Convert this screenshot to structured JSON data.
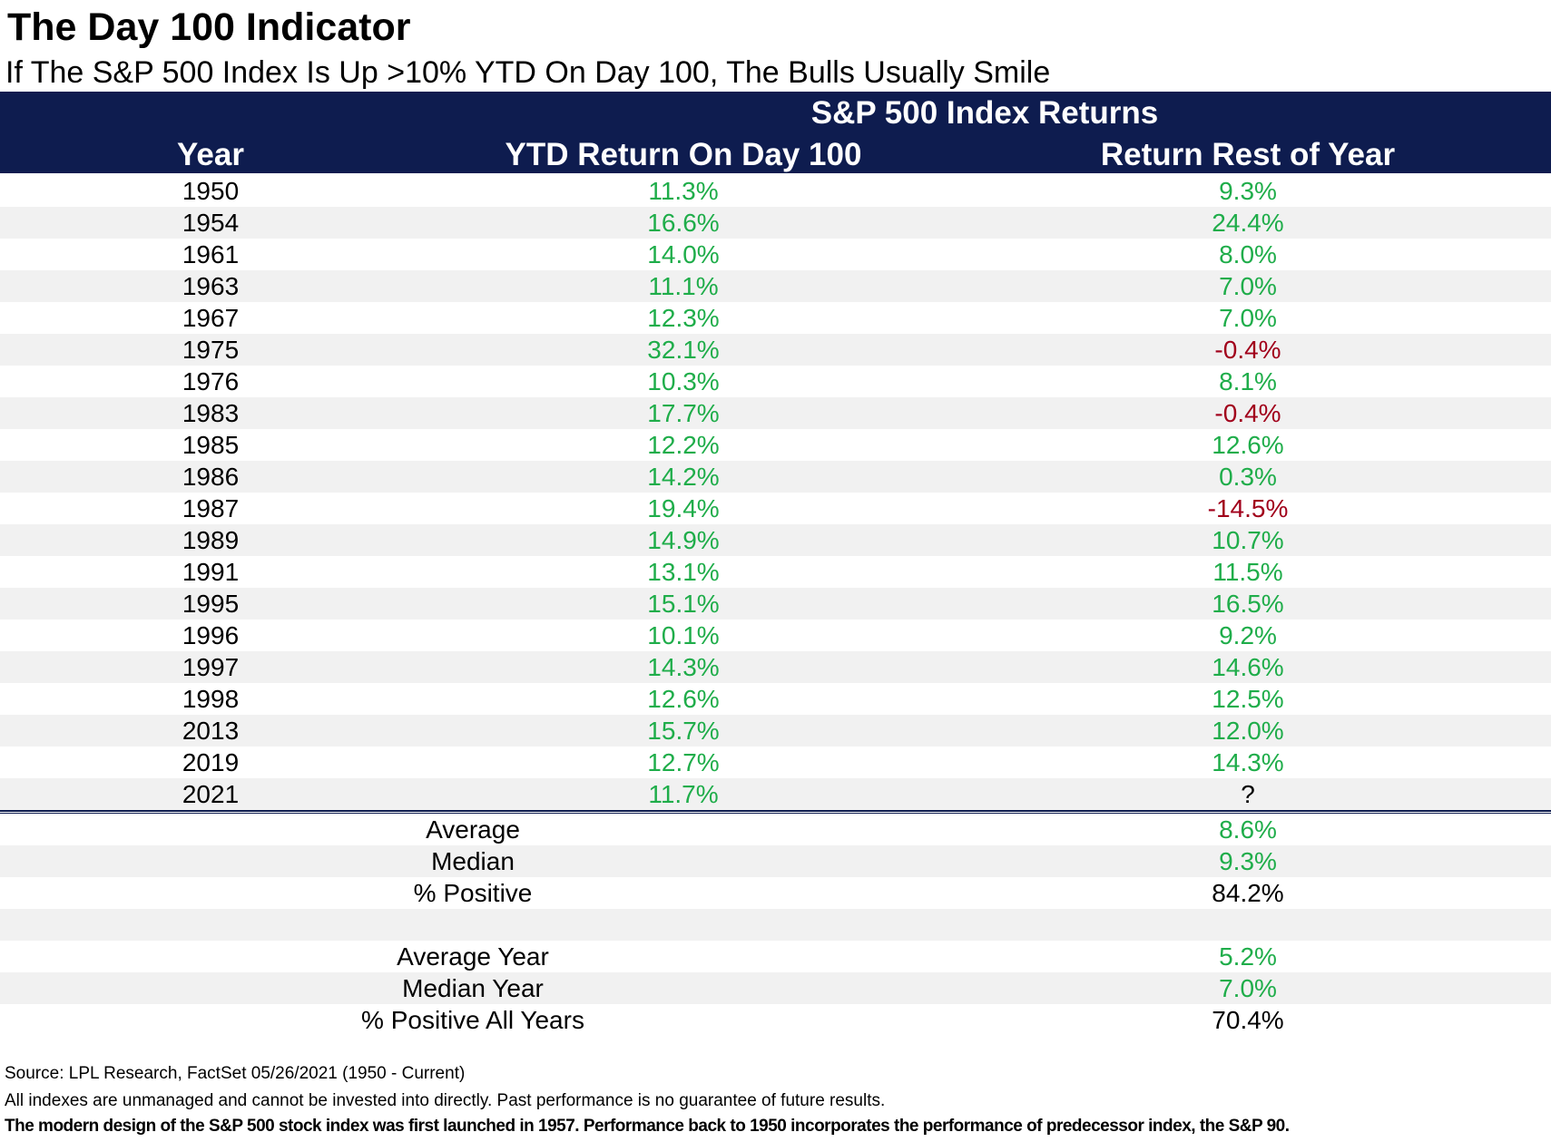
{
  "colors": {
    "header_bg": "#0e1c4f",
    "positive": "#1fad4a",
    "negative": "#a1001b",
    "row_shade": "#f1f1f1"
  },
  "title": "The Day 100 Indicator",
  "subtitle": "If The S&P 500 Index Is Up >10% YTD On Day 100, The Bulls Usually Smile",
  "chart_data": {
    "type": "table",
    "title": "The Day 100 Indicator",
    "subtitle": "If The S&P 500 Index Is Up >10% YTD On Day 100, The Bulls Usually Smile",
    "group_header": "S&P 500 Index Returns",
    "columns": [
      "Year",
      "YTD Return On Day 100",
      "Return Rest of Year"
    ],
    "rows": [
      {
        "year": "1950",
        "ytd": "11.3%",
        "rest": "9.3%"
      },
      {
        "year": "1954",
        "ytd": "16.6%",
        "rest": "24.4%"
      },
      {
        "year": "1961",
        "ytd": "14.0%",
        "rest": "8.0%"
      },
      {
        "year": "1963",
        "ytd": "11.1%",
        "rest": "7.0%"
      },
      {
        "year": "1967",
        "ytd": "12.3%",
        "rest": "7.0%"
      },
      {
        "year": "1975",
        "ytd": "32.1%",
        "rest": "-0.4%"
      },
      {
        "year": "1976",
        "ytd": "10.3%",
        "rest": "8.1%"
      },
      {
        "year": "1983",
        "ytd": "17.7%",
        "rest": "-0.4%"
      },
      {
        "year": "1985",
        "ytd": "12.2%",
        "rest": "12.6%"
      },
      {
        "year": "1986",
        "ytd": "14.2%",
        "rest": "0.3%"
      },
      {
        "year": "1987",
        "ytd": "19.4%",
        "rest": "-14.5%"
      },
      {
        "year": "1989",
        "ytd": "14.9%",
        "rest": "10.7%"
      },
      {
        "year": "1991",
        "ytd": "13.1%",
        "rest": "11.5%"
      },
      {
        "year": "1995",
        "ytd": "15.1%",
        "rest": "16.5%"
      },
      {
        "year": "1996",
        "ytd": "10.1%",
        "rest": "9.2%"
      },
      {
        "year": "1997",
        "ytd": "14.3%",
        "rest": "14.6%"
      },
      {
        "year": "1998",
        "ytd": "12.6%",
        "rest": "12.5%"
      },
      {
        "year": "2013",
        "ytd": "15.7%",
        "rest": "12.0%"
      },
      {
        "year": "2019",
        "ytd": "12.7%",
        "rest": "14.3%"
      },
      {
        "year": "2021",
        "ytd": "11.7%",
        "rest": "?"
      }
    ],
    "summary": [
      {
        "label": "Average",
        "value": "8.6%"
      },
      {
        "label": "Median",
        "value": "9.3%"
      },
      {
        "label": "% Positive",
        "value": "84.2%"
      },
      {
        "label": "",
        "value": ""
      },
      {
        "label": "Average Year",
        "value": "5.2%"
      },
      {
        "label": "Median Year",
        "value": "7.0%"
      },
      {
        "label": "% Positive All Years",
        "value": "70.4%"
      }
    ]
  },
  "footer": {
    "source": "Source: LPL Research, FactSet 05/26/2021 (1950 - Current)",
    "disclaimer": "All indexes are unmanaged and cannot be invested into directly. Past performance is no guarantee of future results.",
    "note": "The modern design of the S&P 500 stock index was first launched in 1957. Performance back to 1950 incorporates the performance of predecessor index, the S&P 90."
  }
}
